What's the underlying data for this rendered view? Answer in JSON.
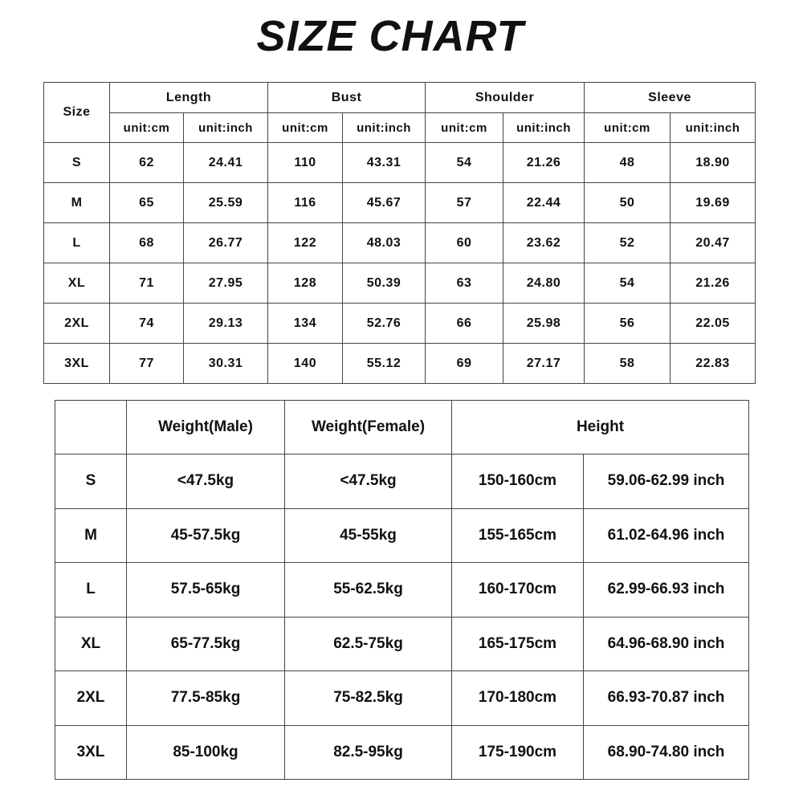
{
  "title": "SIZE CHART",
  "measurements": {
    "size_header": "Size",
    "groups": [
      "Length",
      "Bust",
      "Shoulder",
      "Sleeve"
    ],
    "unit_cm": "unit:cm",
    "unit_inch": "unit:inch",
    "rows": [
      {
        "size": "S",
        "values": [
          "62",
          "24.41",
          "110",
          "43.31",
          "54",
          "21.26",
          "48",
          "18.90"
        ]
      },
      {
        "size": "M",
        "values": [
          "65",
          "25.59",
          "116",
          "45.67",
          "57",
          "22.44",
          "50",
          "19.69"
        ]
      },
      {
        "size": "L",
        "values": [
          "68",
          "26.77",
          "122",
          "48.03",
          "60",
          "23.62",
          "52",
          "20.47"
        ]
      },
      {
        "size": "XL",
        "values": [
          "71",
          "27.95",
          "128",
          "50.39",
          "63",
          "24.80",
          "54",
          "21.26"
        ]
      },
      {
        "size": "2XL",
        "values": [
          "74",
          "29.13",
          "134",
          "52.76",
          "66",
          "25.98",
          "56",
          "22.05"
        ]
      },
      {
        "size": "3XL",
        "values": [
          "77",
          "30.31",
          "140",
          "55.12",
          "69",
          "27.17",
          "58",
          "22.83"
        ]
      }
    ]
  },
  "fit": {
    "headers": [
      "Weight(Male)",
      "Weight(Female)",
      "Height"
    ],
    "rows": [
      {
        "size": "S",
        "values": [
          "<47.5kg",
          "<47.5kg",
          "150-160cm",
          "59.06-62.99 inch"
        ]
      },
      {
        "size": "M",
        "values": [
          "45-57.5kg",
          "45-55kg",
          "155-165cm",
          "61.02-64.96 inch"
        ]
      },
      {
        "size": "L",
        "values": [
          "57.5-65kg",
          "55-62.5kg",
          "160-170cm",
          "62.99-66.93 inch"
        ]
      },
      {
        "size": "XL",
        "values": [
          "65-77.5kg",
          "62.5-75kg",
          "165-175cm",
          "64.96-68.90 inch"
        ]
      },
      {
        "size": "2XL",
        "values": [
          "77.5-85kg",
          "75-82.5kg",
          "170-180cm",
          "66.93-70.87 inch"
        ]
      },
      {
        "size": "3XL",
        "values": [
          "85-100kg",
          "82.5-95kg",
          "175-190cm",
          "68.90-74.80 inch"
        ]
      }
    ]
  }
}
